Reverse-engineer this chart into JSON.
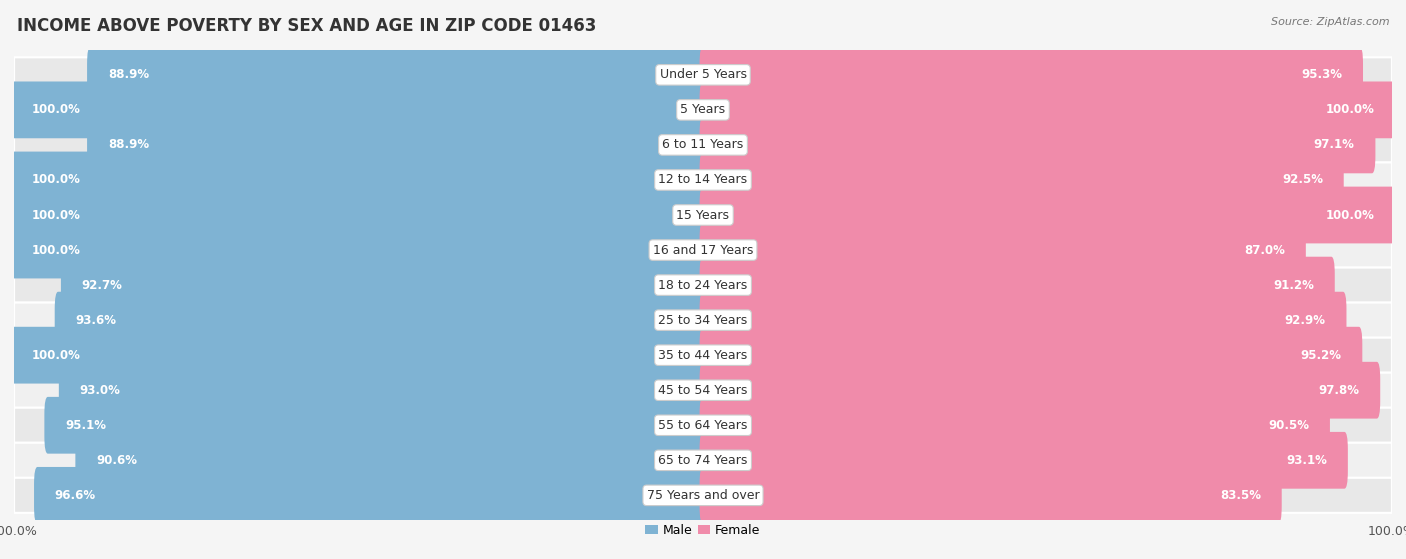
{
  "title": "INCOME ABOVE POVERTY BY SEX AND AGE IN ZIP CODE 01463",
  "source": "Source: ZipAtlas.com",
  "categories": [
    "Under 5 Years",
    "5 Years",
    "6 to 11 Years",
    "12 to 14 Years",
    "15 Years",
    "16 and 17 Years",
    "18 to 24 Years",
    "25 to 34 Years",
    "35 to 44 Years",
    "45 to 54 Years",
    "55 to 64 Years",
    "65 to 74 Years",
    "75 Years and over"
  ],
  "male_values": [
    88.9,
    100.0,
    88.9,
    100.0,
    100.0,
    100.0,
    92.7,
    93.6,
    100.0,
    93.0,
    95.1,
    90.6,
    96.6
  ],
  "female_values": [
    95.3,
    100.0,
    97.1,
    92.5,
    100.0,
    87.0,
    91.2,
    92.9,
    95.2,
    97.8,
    90.5,
    93.1,
    83.5
  ],
  "male_color": "#7fb3d3",
  "male_color_light": "#b8d4e8",
  "female_color": "#f08baa",
  "female_color_light": "#f9c6d5",
  "row_bg_dark": "#e8e8e8",
  "row_bg_light": "#f0f0f0",
  "bg_color": "#f5f5f5",
  "legend_male": "Male",
  "legend_female": "Female",
  "title_fontsize": 12,
  "source_fontsize": 8,
  "category_fontsize": 9,
  "value_fontsize": 8.5
}
